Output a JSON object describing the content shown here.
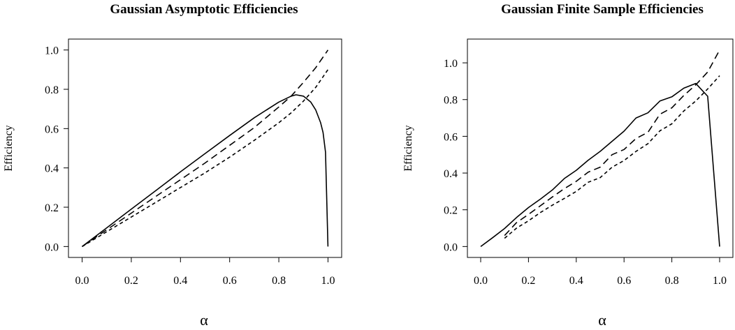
{
  "chart_data": [
    {
      "type": "line",
      "title": "Gaussian Asymptotic Efficiencies",
      "xlabel": "α",
      "ylabel": "Efficiency",
      "xlim": [
        0,
        1
      ],
      "ylim": [
        0,
        1
      ],
      "xticks": [
        "0.0",
        "0.2",
        "0.4",
        "0.6",
        "0.8",
        "1.0"
      ],
      "yticks": [
        "0.0",
        "0.2",
        "0.4",
        "0.6",
        "0.8",
        "1.0"
      ],
      "grid": false,
      "series": [
        {
          "style": "solid",
          "x": [
            0,
            0.1,
            0.2,
            0.3,
            0.4,
            0.5,
            0.6,
            0.7,
            0.8,
            0.85,
            0.87,
            0.9,
            0.93,
            0.95,
            0.97,
            0.98,
            0.99,
            1.0
          ],
          "y": [
            0,
            0.095,
            0.19,
            0.285,
            0.38,
            0.473,
            0.565,
            0.655,
            0.735,
            0.765,
            0.772,
            0.765,
            0.735,
            0.695,
            0.63,
            0.58,
            0.48,
            0.0
          ]
        },
        {
          "style": "dashed",
          "x": [
            0,
            0.1,
            0.2,
            0.3,
            0.4,
            0.5,
            0.6,
            0.7,
            0.8,
            0.85,
            0.9,
            0.95,
            1.0
          ],
          "y": [
            0,
            0.085,
            0.17,
            0.255,
            0.34,
            0.425,
            0.515,
            0.605,
            0.71,
            0.765,
            0.835,
            0.91,
            1.0
          ]
        },
        {
          "style": "dotted",
          "x": [
            0,
            0.1,
            0.2,
            0.3,
            0.4,
            0.5,
            0.6,
            0.7,
            0.8,
            0.85,
            0.9,
            0.95,
            1.0
          ],
          "y": [
            0,
            0.075,
            0.15,
            0.225,
            0.3,
            0.375,
            0.455,
            0.54,
            0.63,
            0.68,
            0.74,
            0.81,
            0.9
          ]
        }
      ]
    },
    {
      "type": "line",
      "title": "Gaussian Finite Sample Efficiencies",
      "xlabel": "α",
      "ylabel": "Efficiency",
      "xlim": [
        0,
        1
      ],
      "ylim": [
        0,
        1.07
      ],
      "xticks": [
        "0.0",
        "0.2",
        "0.4",
        "0.6",
        "0.8",
        "1.0"
      ],
      "yticks": [
        "0.0",
        "0.2",
        "0.4",
        "0.6",
        "0.8",
        "1.0"
      ],
      "grid": false,
      "series": [
        {
          "style": "solid",
          "x": [
            0,
            0.05,
            0.1,
            0.15,
            0.2,
            0.25,
            0.3,
            0.35,
            0.4,
            0.45,
            0.5,
            0.55,
            0.6,
            0.65,
            0.7,
            0.75,
            0.8,
            0.85,
            0.9,
            0.95,
            1.0
          ],
          "y": [
            0,
            0.048,
            0.098,
            0.158,
            0.212,
            0.258,
            0.308,
            0.37,
            0.415,
            0.47,
            0.518,
            0.573,
            0.628,
            0.7,
            0.728,
            0.792,
            0.815,
            0.862,
            0.888,
            0.818,
            0.0
          ]
        },
        {
          "style": "dashed",
          "x": [
            0.1,
            0.15,
            0.2,
            0.25,
            0.3,
            0.35,
            0.4,
            0.45,
            0.5,
            0.55,
            0.6,
            0.65,
            0.7,
            0.75,
            0.8,
            0.85,
            0.9,
            0.95,
            1.0
          ],
          "y": [
            0.06,
            0.13,
            0.175,
            0.222,
            0.27,
            0.315,
            0.355,
            0.405,
            0.432,
            0.5,
            0.528,
            0.588,
            0.622,
            0.72,
            0.755,
            0.822,
            0.88,
            0.95,
            1.07
          ]
        },
        {
          "style": "dotted",
          "x": [
            0.1,
            0.15,
            0.2,
            0.25,
            0.3,
            0.35,
            0.4,
            0.45,
            0.5,
            0.55,
            0.6,
            0.65,
            0.7,
            0.75,
            0.8,
            0.85,
            0.9,
            0.95,
            1.0
          ],
          "y": [
            0.045,
            0.1,
            0.14,
            0.185,
            0.225,
            0.262,
            0.3,
            0.35,
            0.375,
            0.432,
            0.468,
            0.518,
            0.56,
            0.63,
            0.668,
            0.738,
            0.792,
            0.858,
            0.93
          ]
        }
      ]
    }
  ]
}
